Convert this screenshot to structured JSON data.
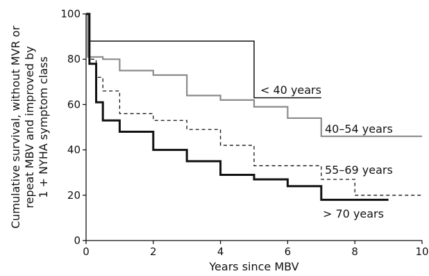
{
  "chart_data": {
    "type": "line",
    "subtype": "step (Kaplan-Meier survival curves)",
    "title": "",
    "xlabel": "Years since MBV",
    "ylabel_lines": [
      "Cumulative survival, without MVR or",
      "repeat MBV and improved by",
      "1 + NYHA symptom class"
    ],
    "xlim": [
      0,
      10
    ],
    "ylim": [
      0,
      100
    ],
    "xticks": [
      0,
      2,
      4,
      6,
      8,
      10
    ],
    "yticks": [
      0,
      20,
      40,
      60,
      80,
      100
    ],
    "grid": false,
    "legend": "none (series labelled inline next to curves)",
    "series": [
      {
        "name": "< 40 years",
        "style": "solid-thin-black",
        "x": [
          0,
          0.05,
          5.0,
          7.0
        ],
        "y": [
          100,
          88,
          63,
          63
        ]
      },
      {
        "name": "40–54 years",
        "style": "solid-gray",
        "x": [
          0,
          0.05,
          0.5,
          1.0,
          2.0,
          3.0,
          4.0,
          5.0,
          6.0,
          7.0,
          10.0
        ],
        "y": [
          100,
          81,
          80,
          75,
          73,
          64,
          62,
          59,
          54,
          46,
          46
        ]
      },
      {
        "name": "55–69 years",
        "style": "dashed-black",
        "x": [
          0,
          0.1,
          0.3,
          0.5,
          1.0,
          2.0,
          3.0,
          4.0,
          5.0,
          7.0,
          8.0,
          10.0
        ],
        "y": [
          100,
          80,
          72,
          66,
          56,
          53,
          49,
          42,
          33,
          27,
          20,
          20
        ]
      },
      {
        "name": "> 70 years",
        "style": "solid-thick-black",
        "x": [
          0,
          0.1,
          0.3,
          0.5,
          1.0,
          2.0,
          3.0,
          4.0,
          5.0,
          6.0,
          7.0,
          9.0
        ],
        "y": [
          100,
          78,
          61,
          53,
          48,
          40,
          35,
          29,
          27,
          24,
          18,
          18
        ]
      }
    ]
  },
  "colors": {
    "axis": "#111111",
    "series_black": "#111111",
    "series_gray": "#8a8a8a",
    "background": "#ffffff"
  }
}
